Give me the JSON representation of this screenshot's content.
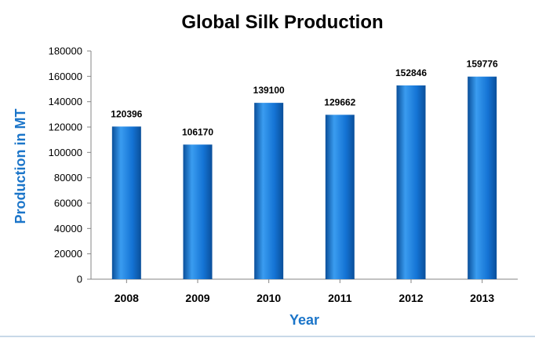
{
  "chart_data": {
    "type": "bar",
    "title": "Global Silk Production",
    "xlabel": "Year",
    "ylabel": "Production in MT",
    "categories": [
      "2008",
      "2009",
      "2010",
      "2011",
      "2012",
      "2013"
    ],
    "values": [
      120396,
      106170,
      139100,
      129662,
      152846,
      159776
    ],
    "data_labels": [
      "120396",
      "106170",
      "139100",
      "129662",
      "152846",
      "159776"
    ],
    "ylim": [
      0,
      180000
    ],
    "yticks": [
      "0",
      "20000",
      "40000",
      "60000",
      "80000",
      "100000",
      "120000",
      "140000",
      "160000",
      "180000"
    ],
    "grid": false,
    "legend": "none",
    "colors": {
      "bar_light": "#3a9cf0",
      "bar_mid": "#1473d4",
      "bar_dark": "#0a4f9a",
      "axis_label": "#1b75c9",
      "frame_line": "#c8d8e8"
    }
  }
}
